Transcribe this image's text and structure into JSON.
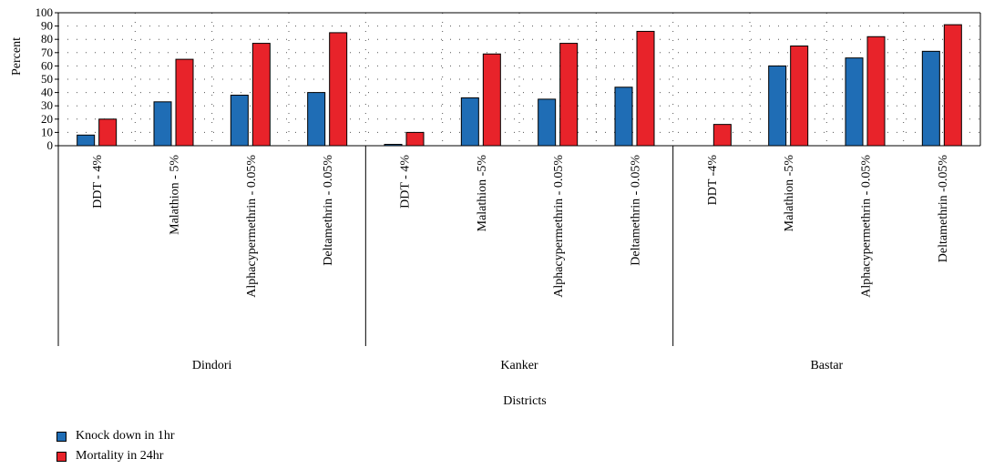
{
  "chart_data": {
    "type": "bar",
    "ylabel": "Percent",
    "xlabel": "Districts",
    "ylim": [
      0,
      100
    ],
    "yticks": [
      0,
      10,
      20,
      30,
      40,
      50,
      60,
      70,
      80,
      90,
      100
    ],
    "grid": true,
    "groups": [
      {
        "name": "Dindori",
        "categories": [
          "DDT - 4%",
          "Malathion - 5%",
          "Alphacypermethrin - 0.05%",
          "Deltamethrin - 0.05%"
        ]
      },
      {
        "name": "Kanker",
        "categories": [
          "DDT - 4%",
          "Malathion -5%",
          "Alphacypermethrin - 0.05%",
          "Deltamethrin - 0.05%"
        ]
      },
      {
        "name": "Bastar",
        "categories": [
          "DDT -4%",
          "Malathion -5%",
          "Alphacypermethrin - 0.05%",
          "Deltamethrin -0.05%"
        ]
      }
    ],
    "series": [
      {
        "name": "Knock down in 1hr",
        "color": "#1f6db5",
        "values": [
          8,
          33,
          38,
          40,
          1,
          36,
          35,
          44,
          0,
          60,
          66,
          71
        ]
      },
      {
        "name": "Mortality in 24hr",
        "color": "#e8232a",
        "values": [
          20,
          65,
          77,
          85,
          10,
          69,
          77,
          86,
          16,
          75,
          82,
          91
        ]
      }
    ],
    "legend_position": "bottom-left"
  }
}
